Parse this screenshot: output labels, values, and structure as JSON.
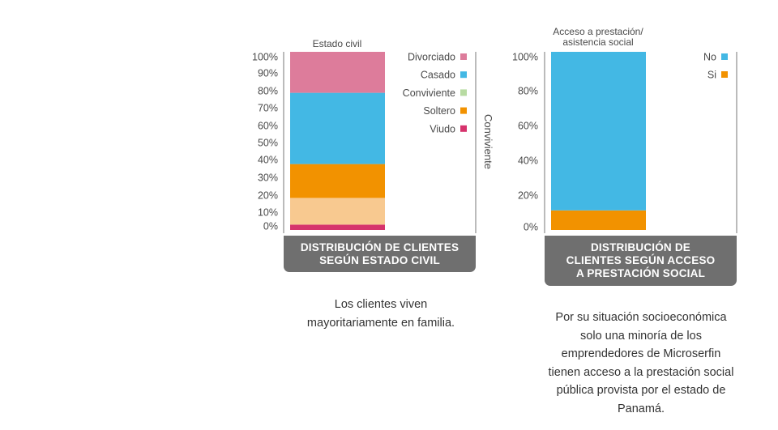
{
  "colors": {
    "divorciado": "#dd7c9b",
    "casado": "#43b8e4",
    "conviviente": "#f8c990",
    "conviviente_legend": "#b8dba2",
    "soltero": "#f29200",
    "viudo": "#d6336c",
    "no": "#43b8e4",
    "si": "#f29200",
    "caption_bg": "#6f6f6f",
    "axis_line": "#777777"
  },
  "chart_data": [
    {
      "type": "bar",
      "stacked": true,
      "title": "Estado civil",
      "side_label": "Conviviente",
      "ylim": [
        0,
        100
      ],
      "y_ticks": [
        "0%",
        "10%",
        "20%",
        "30%",
        "40%",
        "50%",
        "60%",
        "70%",
        "80%",
        "90%",
        "100%"
      ],
      "legend": [
        "Divorciado",
        "Casado",
        "Conviviente",
        "Soltero",
        "Viudo"
      ],
      "segments": [
        {
          "name": "Viudo",
          "value": 3,
          "color_key": "viudo"
        },
        {
          "name": "Conviviente",
          "value": 15,
          "color_key": "conviviente"
        },
        {
          "name": "Soltero",
          "value": 19,
          "color_key": "soltero"
        },
        {
          "name": "Casado",
          "value": 40,
          "color_key": "casado"
        },
        {
          "name": "Divorciado",
          "value": 26,
          "color_key": "divorciado"
        }
      ]
    },
    {
      "type": "bar",
      "stacked": true,
      "title": "Acceso a prestación/\nasistencia social",
      "ylim": [
        0,
        100
      ],
      "y_ticks": [
        "0%",
        "20%",
        "40%",
        "60%",
        "80%",
        "100%"
      ],
      "legend": [
        "No",
        "Si"
      ],
      "segments": [
        {
          "name": "Si",
          "value": 11,
          "color_key": "si"
        },
        {
          "name": "No",
          "value": 91,
          "color_key": "no"
        }
      ]
    }
  ],
  "captions": {
    "left": "DISTRIBUCIÓN DE CLIENTES\nSEGÚN ESTADO CIVIL",
    "right": "DISTRIBUCIÓN DE\nCLIENTES SEGÚN ACCESO\nA PRESTACIÓN SOCIAL"
  },
  "notes": {
    "left": "Los clientes viven\nmayoritariamente en familia.",
    "right": "Por su situación socioeconómica\nsolo una minoría de los\nemprendedores de Microserfin\ntienen acceso a la prestación social\npública provista por el estado de\nPanamá."
  }
}
